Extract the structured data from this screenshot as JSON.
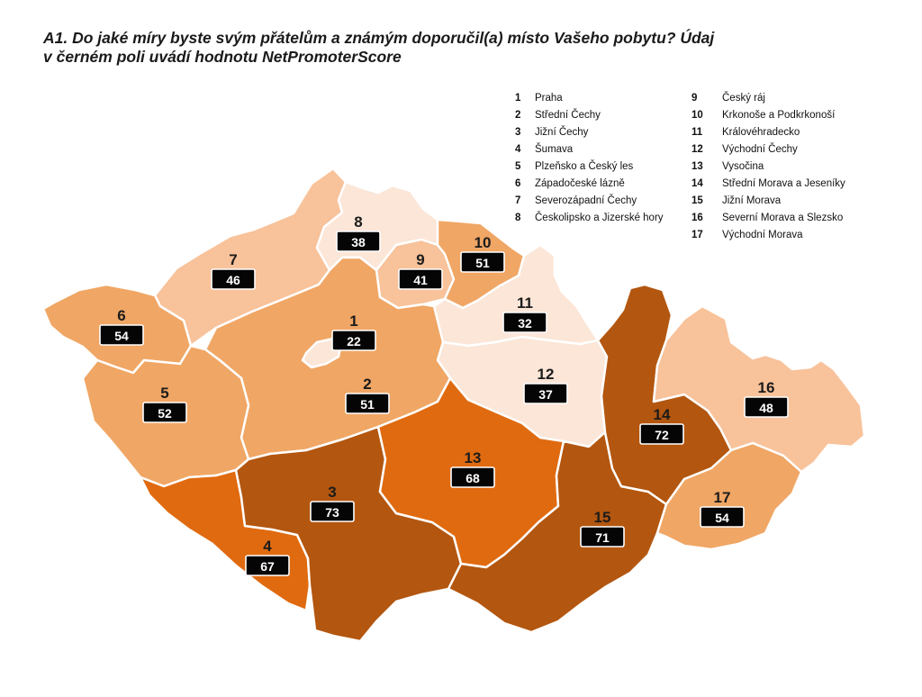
{
  "title": {
    "line1": "A1. Do jaké míry byste svým přátelům a známým doporučil(a) místo Vašeho pobytu? Údaj",
    "line2": "v černém poli uvádí hodnotu NetPromoterScore"
  },
  "legend": {
    "left": [
      {
        "num": "1",
        "label": "Praha"
      },
      {
        "num": "2",
        "label": "Střední Čechy"
      },
      {
        "num": "3",
        "label": "Jižní Čechy"
      },
      {
        "num": "4",
        "label": "Šumava"
      },
      {
        "num": "5",
        "label": "Plzeňsko a Český les"
      },
      {
        "num": "6",
        "label": "Západočeské lázně"
      },
      {
        "num": "7",
        "label": "Severozápadní Čechy"
      },
      {
        "num": "8",
        "label": "Českolipsko a Jizerské hory"
      }
    ],
    "right": [
      {
        "num": "9",
        "label": "Český ráj"
      },
      {
        "num": "10",
        "label": "Krkonoše a Podkrkonoší"
      },
      {
        "num": "11",
        "label": "Královéhradecko"
      },
      {
        "num": "12",
        "label": "Východní Čechy"
      },
      {
        "num": "13",
        "label": "Vysočina"
      },
      {
        "num": "14",
        "label": "Střední Morava a Jeseníky"
      },
      {
        "num": "15",
        "label": "Jižní Morava"
      },
      {
        "num": "16",
        "label": "Severní Morava a Slezsko"
      },
      {
        "num": "17",
        "label": "Východní Morava"
      }
    ]
  },
  "regions": [
    {
      "id": "1",
      "name": "Praha",
      "nps": "22",
      "color": "#fbe6d8"
    },
    {
      "id": "2",
      "name": "Střední Čechy",
      "nps": "51",
      "color": "#f0a664"
    },
    {
      "id": "3",
      "name": "Jižní Čechy",
      "nps": "73",
      "color": "#b3560f"
    },
    {
      "id": "4",
      "name": "Šumava",
      "nps": "67",
      "color": "#e06a10"
    },
    {
      "id": "5",
      "name": "Plzeňsko a Český les",
      "nps": "52",
      "color": "#f0a664"
    },
    {
      "id": "6",
      "name": "Západočeské lázně",
      "nps": "54",
      "color": "#f0a664"
    },
    {
      "id": "7",
      "name": "Severozápadní Čechy",
      "nps": "46",
      "color": "#f8c29a"
    },
    {
      "id": "8",
      "name": "Českolipsko a Jizerské hory",
      "nps": "38",
      "color": "#fbe6d8"
    },
    {
      "id": "9",
      "name": "Český ráj",
      "nps": "41",
      "color": "#f8c29a"
    },
    {
      "id": "10",
      "name": "Krkonoše a Podkrkonoší",
      "nps": "51",
      "color": "#f0a664"
    },
    {
      "id": "11",
      "name": "Královéhradecko",
      "nps": "32",
      "color": "#fbe6d8"
    },
    {
      "id": "12",
      "name": "Východní Čechy",
      "nps": "37",
      "color": "#fbe6d8"
    },
    {
      "id": "13",
      "name": "Vysočina",
      "nps": "68",
      "color": "#e06a10"
    },
    {
      "id": "14",
      "name": "Střední Morava a Jeseníky",
      "nps": "72",
      "color": "#b3560f"
    },
    {
      "id": "15",
      "name": "Jižní Morava",
      "nps": "71",
      "color": "#b3560f"
    },
    {
      "id": "16",
      "name": "Severní Morava a Slezsko",
      "nps": "48",
      "color": "#f8c29a"
    },
    {
      "id": "17",
      "name": "Východní Morava",
      "nps": "54",
      "color": "#f0a664"
    }
  ],
  "colors": {
    "border": "#ffffff",
    "label_box": "#050505"
  }
}
